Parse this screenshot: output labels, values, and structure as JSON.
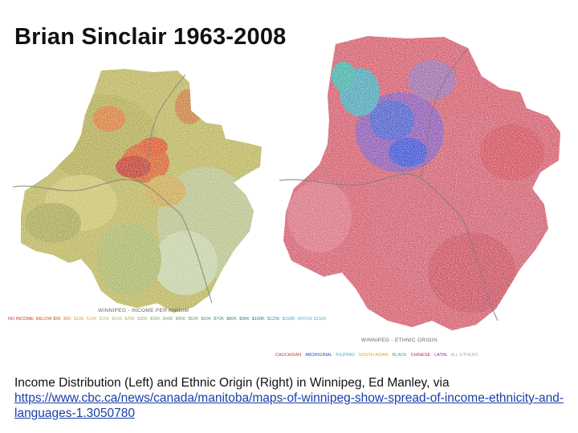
{
  "title": "Brian Sinclair 1963-2008",
  "maps": {
    "left": {
      "title": "WINNIPEG - INCOME PER ANNUM",
      "legend": [
        {
          "label": "NO INCOME",
          "color": "#c0392b"
        },
        {
          "label": "BELOW $5K",
          "color": "#d35400"
        },
        {
          "label": "$5K",
          "color": "#e67e22"
        },
        {
          "label": "$10K",
          "color": "#e8a33a"
        },
        {
          "label": "$10K",
          "color": "#d9b44a"
        },
        {
          "label": "$15K",
          "color": "#c9b74f"
        },
        {
          "label": "$20K",
          "color": "#b8b856"
        },
        {
          "label": "$25K",
          "color": "#a9b45c"
        },
        {
          "label": "$30K",
          "color": "#9aaf60"
        },
        {
          "label": "$35K",
          "color": "#8aaa66"
        },
        {
          "label": "$40K",
          "color": "#7ca56b"
        },
        {
          "label": "$45K",
          "color": "#6ea070"
        },
        {
          "label": "$50K",
          "color": "#5f9a76"
        },
        {
          "label": "$60K",
          "color": "#54937b"
        },
        {
          "label": "$70K",
          "color": "#4a8c80"
        },
        {
          "label": "$80K",
          "color": "#418585"
        },
        {
          "label": "$90K",
          "color": "#3a7f8a"
        },
        {
          "label": "$100K",
          "color": "#33788f"
        },
        {
          "label": "$125K",
          "color": "#3d8fb3"
        },
        {
          "label": "$150K",
          "color": "#4aa3cc"
        },
        {
          "label": "ABOVE $150K",
          "color": "#5ab8e0"
        }
      ]
    },
    "right": {
      "title": "WINNIPEG - ETHNIC ORIGIN",
      "legend": [
        {
          "label": "CAUCASIAN",
          "color": "#c0392b"
        },
        {
          "label": "ABORIGINAL",
          "color": "#2e4fb5"
        },
        {
          "label": "FILIPINO",
          "color": "#3fa7c9"
        },
        {
          "label": "SOUTH ASIAN",
          "color": "#e0a800"
        },
        {
          "label": "BLACK",
          "color": "#4caf50"
        },
        {
          "label": "CHINESE",
          "color": "#d81b60"
        },
        {
          "label": "LATIN",
          "color": "#9c27b0"
        },
        {
          "label": "ALL OTHERS",
          "color": "#aaaaaa"
        }
      ]
    }
  },
  "caption": {
    "text": "Income Distribution (Left) and Ethnic Origin (Right) in Winnipeg, Ed Manley, via",
    "link": "https://www.cbc.ca/news/canada/manitoba/maps-of-winnipeg-show-spread-of-income-ethnicity-and-languages-1.3050780"
  }
}
